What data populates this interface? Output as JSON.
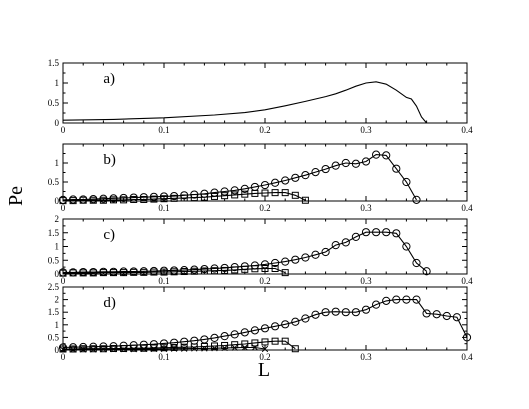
{
  "chart_data": {
    "type": "line",
    "ylabel": "Pe",
    "xlabel": "L",
    "xlim": [
      0,
      0.4
    ],
    "xticks": [
      "0",
      "0.1",
      "0.2",
      "0.3",
      "0.4"
    ],
    "panels": [
      {
        "label": "a)",
        "ylim": [
          0,
          1.5
        ],
        "yticks": [
          "0",
          "0.5",
          "1",
          "1.5"
        ],
        "series": [
          {
            "marker": "none",
            "x": [
              0.0,
              0.05,
              0.1,
              0.15,
              0.18,
              0.2,
              0.22,
              0.24,
              0.26,
              0.27,
              0.28,
              0.29,
              0.3,
              0.31,
              0.32,
              0.33,
              0.34,
              0.345,
              0.35,
              0.355,
              0.36
            ],
            "y": [
              0.07,
              0.09,
              0.13,
              0.2,
              0.26,
              0.33,
              0.43,
              0.54,
              0.66,
              0.73,
              0.82,
              0.92,
              1.0,
              1.03,
              0.97,
              0.82,
              0.64,
              0.6,
              0.42,
              0.15,
              0.0
            ]
          }
        ]
      },
      {
        "label": "b)",
        "ylim": [
          0,
          1.5
        ],
        "yticks": [
          "0",
          "0.5",
          "1"
        ],
        "series": [
          {
            "marker": "circle",
            "x": [
              0.0,
              0.01,
              0.02,
              0.03,
              0.04,
              0.05,
              0.06,
              0.07,
              0.08,
              0.09,
              0.1,
              0.11,
              0.12,
              0.13,
              0.14,
              0.15,
              0.16,
              0.17,
              0.18,
              0.19,
              0.2,
              0.21,
              0.22,
              0.23,
              0.24,
              0.25,
              0.26,
              0.27,
              0.28,
              0.29,
              0.3,
              0.31,
              0.32,
              0.33,
              0.34,
              0.35
            ],
            "y": [
              0.03,
              0.04,
              0.04,
              0.05,
              0.06,
              0.07,
              0.08,
              0.09,
              0.1,
              0.11,
              0.12,
              0.13,
              0.15,
              0.17,
              0.19,
              0.22,
              0.25,
              0.28,
              0.32,
              0.37,
              0.42,
              0.48,
              0.54,
              0.61,
              0.68,
              0.76,
              0.84,
              0.93,
              1.0,
              0.98,
              1.04,
              1.22,
              1.2,
              0.85,
              0.5,
              0.03
            ]
          },
          {
            "marker": "square",
            "x": [
              0.0,
              0.01,
              0.02,
              0.03,
              0.04,
              0.05,
              0.06,
              0.07,
              0.08,
              0.09,
              0.1,
              0.11,
              0.12,
              0.13,
              0.14,
              0.15,
              0.16,
              0.17,
              0.18,
              0.19,
              0.2,
              0.21,
              0.22,
              0.23,
              0.24
            ],
            "y": [
              0.01,
              0.01,
              0.02,
              0.02,
              0.02,
              0.03,
              0.03,
              0.04,
              0.04,
              0.05,
              0.06,
              0.07,
              0.08,
              0.09,
              0.1,
              0.12,
              0.14,
              0.16,
              0.18,
              0.2,
              0.21,
              0.22,
              0.22,
              0.15,
              0.02
            ]
          }
        ]
      },
      {
        "label": "c)",
        "ylim": [
          0,
          2
        ],
        "yticks": [
          "0",
          "0.5",
          "1",
          "1.5",
          "2"
        ],
        "series": [
          {
            "marker": "circle",
            "x": [
              0.0,
              0.01,
              0.02,
              0.03,
              0.04,
              0.05,
              0.06,
              0.07,
              0.08,
              0.09,
              0.1,
              0.11,
              0.12,
              0.13,
              0.14,
              0.15,
              0.16,
              0.17,
              0.18,
              0.19,
              0.2,
              0.21,
              0.22,
              0.23,
              0.24,
              0.25,
              0.26,
              0.27,
              0.28,
              0.29,
              0.3,
              0.31,
              0.32,
              0.33,
              0.34,
              0.35,
              0.36
            ],
            "y": [
              0.06,
              0.06,
              0.07,
              0.07,
              0.08,
              0.08,
              0.09,
              0.09,
              0.1,
              0.11,
              0.12,
              0.13,
              0.14,
              0.16,
              0.18,
              0.2,
              0.22,
              0.25,
              0.28,
              0.31,
              0.35,
              0.4,
              0.45,
              0.52,
              0.6,
              0.7,
              0.8,
              1.05,
              1.15,
              1.35,
              1.52,
              1.52,
              1.52,
              1.48,
              1.0,
              0.4,
              0.1
            ]
          },
          {
            "marker": "square",
            "x": [
              0.0,
              0.01,
              0.02,
              0.03,
              0.04,
              0.05,
              0.06,
              0.07,
              0.08,
              0.09,
              0.1,
              0.11,
              0.12,
              0.13,
              0.14,
              0.15,
              0.16,
              0.17,
              0.18,
              0.19,
              0.2,
              0.21,
              0.22
            ],
            "y": [
              0.03,
              0.04,
              0.04,
              0.04,
              0.05,
              0.05,
              0.05,
              0.06,
              0.06,
              0.07,
              0.07,
              0.08,
              0.09,
              0.1,
              0.11,
              0.12,
              0.13,
              0.15,
              0.17,
              0.19,
              0.2,
              0.2,
              0.05
            ]
          }
        ]
      },
      {
        "label": "d)",
        "ylim": [
          0,
          2.5
        ],
        "yticks": [
          "0",
          "0.5",
          "1",
          "1.5",
          "2",
          "2.5"
        ],
        "series": [
          {
            "marker": "circle",
            "x": [
              0.0,
              0.01,
              0.02,
              0.03,
              0.04,
              0.05,
              0.06,
              0.07,
              0.08,
              0.09,
              0.1,
              0.11,
              0.12,
              0.13,
              0.14,
              0.15,
              0.16,
              0.17,
              0.18,
              0.19,
              0.2,
              0.21,
              0.22,
              0.23,
              0.24,
              0.25,
              0.26,
              0.27,
              0.28,
              0.29,
              0.3,
              0.31,
              0.32,
              0.33,
              0.34,
              0.35,
              0.36,
              0.37,
              0.38,
              0.39,
              0.4
            ],
            "y": [
              0.1,
              0.11,
              0.12,
              0.13,
              0.14,
              0.15,
              0.17,
              0.19,
              0.21,
              0.23,
              0.26,
              0.29,
              0.33,
              0.37,
              0.42,
              0.48,
              0.55,
              0.62,
              0.7,
              0.78,
              0.86,
              0.94,
              1.02,
              1.12,
              1.25,
              1.4,
              1.5,
              1.52,
              1.5,
              1.5,
              1.6,
              1.8,
              1.95,
              2.0,
              2.0,
              2.0,
              1.45,
              1.42,
              1.35,
              1.3,
              0.5
            ]
          },
          {
            "marker": "square",
            "x": [
              0.0,
              0.01,
              0.02,
              0.03,
              0.04,
              0.05,
              0.06,
              0.07,
              0.08,
              0.09,
              0.1,
              0.11,
              0.12,
              0.13,
              0.14,
              0.15,
              0.16,
              0.17,
              0.18,
              0.19,
              0.2,
              0.21,
              0.22,
              0.23
            ],
            "y": [
              0.04,
              0.04,
              0.05,
              0.05,
              0.05,
              0.06,
              0.06,
              0.07,
              0.07,
              0.08,
              0.09,
              0.1,
              0.11,
              0.12,
              0.14,
              0.16,
              0.18,
              0.21,
              0.24,
              0.28,
              0.32,
              0.35,
              0.35,
              0.05
            ]
          },
          {
            "marker": "x",
            "x": [
              0.0,
              0.01,
              0.02,
              0.03,
              0.04,
              0.05,
              0.06,
              0.07,
              0.08,
              0.09,
              0.1,
              0.11,
              0.12,
              0.13,
              0.14,
              0.15,
              0.16,
              0.17,
              0.18,
              0.19,
              0.2
            ],
            "y": [
              0.02,
              0.02,
              0.02,
              0.02,
              0.03,
              0.03,
              0.03,
              0.03,
              0.04,
              0.04,
              0.04,
              0.05,
              0.05,
              0.06,
              0.06,
              0.07,
              0.08,
              0.09,
              0.1,
              0.1,
              0.04
            ]
          }
        ]
      }
    ]
  }
}
